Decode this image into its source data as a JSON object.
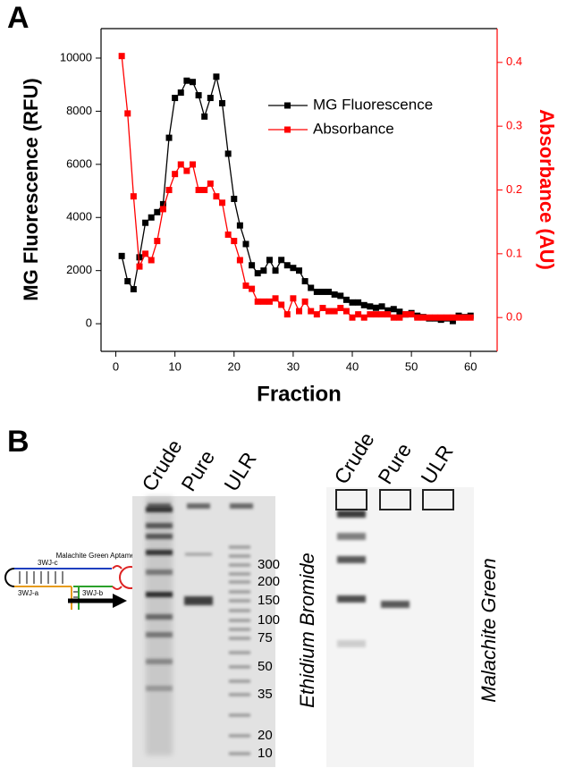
{
  "chart_data": {
    "type": "line",
    "panel_label": "A",
    "xlabel": "Fraction",
    "ylabel": "MG Fluorescence (RFU)",
    "y2label": "Absorbance (AU)",
    "x": [
      1,
      2,
      3,
      4,
      5,
      6,
      7,
      8,
      9,
      10,
      11,
      12,
      13,
      14,
      15,
      16,
      17,
      18,
      19,
      20,
      21,
      22,
      23,
      24,
      25,
      26,
      27,
      28,
      29,
      30,
      31,
      32,
      33,
      34,
      35,
      36,
      37,
      38,
      39,
      40,
      41,
      42,
      43,
      44,
      45,
      46,
      47,
      48,
      49,
      50,
      51,
      52,
      53,
      54,
      55,
      56,
      57,
      58,
      59,
      60
    ],
    "series": [
      {
        "name": "MG Fluorescence",
        "color": "#000000",
        "axis": "y",
        "values": [
          2550,
          1600,
          1300,
          2500,
          3800,
          4000,
          4200,
          4500,
          7000,
          8500,
          8700,
          9150,
          9100,
          8600,
          7800,
          8500,
          9300,
          8300,
          6400,
          4700,
          3700,
          3000,
          2200,
          1900,
          2000,
          2400,
          2000,
          2400,
          2200,
          2100,
          2000,
          1600,
          1350,
          1200,
          1200,
          1200,
          1100,
          1050,
          900,
          800,
          800,
          700,
          650,
          600,
          650,
          500,
          550,
          450,
          350,
          400,
          300,
          250,
          200,
          200,
          150,
          200,
          100,
          300,
          250,
          300
        ]
      },
      {
        "name": "Absorbance",
        "color": "#ff0000",
        "axis": "y2",
        "values": [
          0.41,
          0.32,
          0.19,
          0.08,
          0.1,
          0.09,
          0.12,
          0.17,
          0.2,
          0.225,
          0.24,
          0.23,
          0.24,
          0.2,
          0.2,
          0.21,
          0.19,
          0.18,
          0.13,
          0.12,
          0.09,
          0.05,
          0.045,
          0.025,
          0.025,
          0.025,
          0.03,
          0.02,
          0.005,
          0.03,
          0.01,
          0.025,
          0.01,
          0.005,
          0.015,
          0.01,
          0.01,
          0.015,
          0.01,
          0,
          0.005,
          0,
          0.005,
          0.005,
          0.005,
          0.005,
          0,
          0,
          0.005,
          0.005,
          0,
          0,
          0,
          0,
          0,
          0,
          0,
          0,
          0,
          0
        ]
      }
    ],
    "xlim": [
      -2.5,
      64.5
    ],
    "xticks": [
      0,
      10,
      20,
      30,
      40,
      50,
      60
    ],
    "ylim": [
      -1040,
      11110
    ],
    "yticks": [
      0,
      2000,
      4000,
      6000,
      8000,
      10000
    ],
    "y2lim": [
      -0.053,
      0.453
    ],
    "y2ticks": [
      {
        "value": 0,
        "label": "0.0"
      },
      0.1,
      0.2,
      0.3,
      0.4
    ],
    "y2color": "#ff0000",
    "legend": "upper right",
    "grid": false
  },
  "panel_b": {
    "panel_label": "B",
    "diagram": {
      "aptamer": "Malachite Green Aptamer",
      "c": "3WJ-c",
      "a": "3WJ-a",
      "b": "3WJ-b"
    },
    "gel_lanes_left": [
      "Crude",
      "Pure",
      "ULR"
    ],
    "gel_lanes_right": [
      "Crude",
      "Pure",
      "ULR"
    ],
    "ladder": [
      "300",
      "200",
      "150",
      "100",
      "75",
      "50",
      "35",
      "20",
      "10"
    ],
    "stain_left": "Ethidium Bromide",
    "stain_right": "Malachite Green"
  }
}
